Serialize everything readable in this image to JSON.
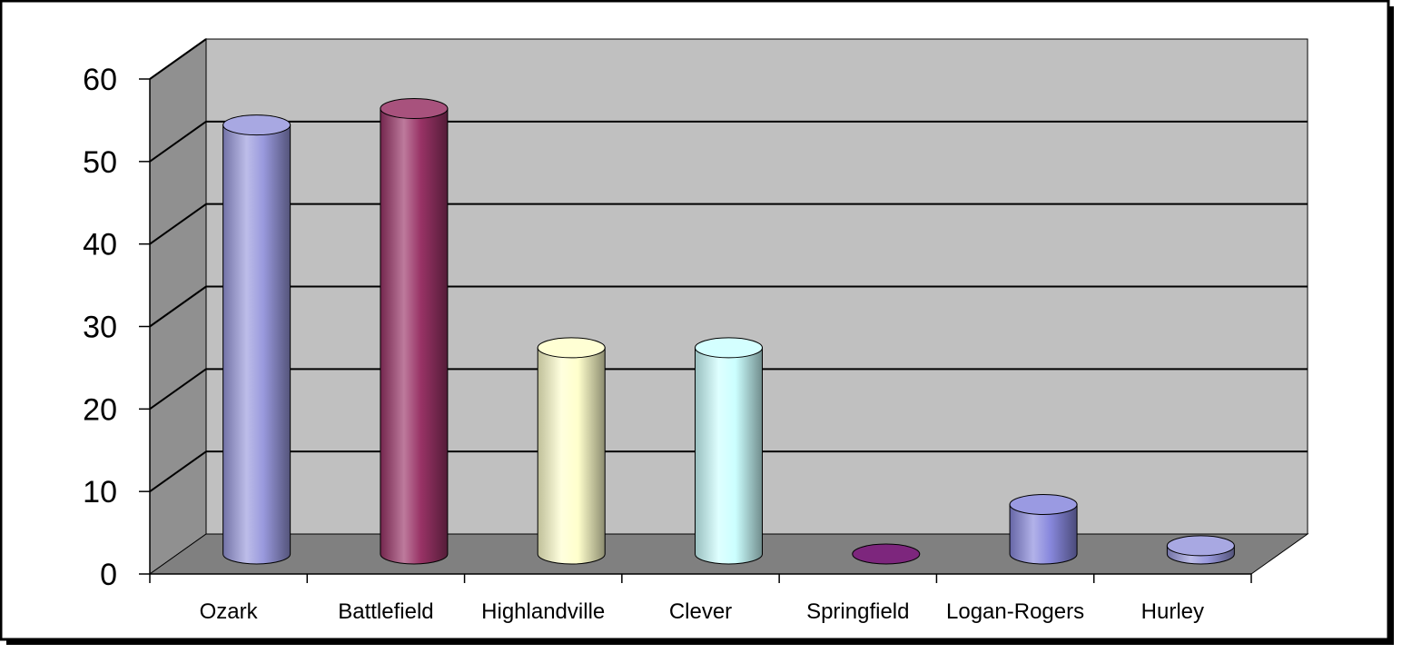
{
  "chart_data": {
    "type": "bar",
    "style": "3d-cylinder",
    "categories": [
      "Ozark",
      "Battlefield",
      "Highlandville",
      "Clever",
      "Springfield",
      "Logan-Rogers",
      "Hurley"
    ],
    "values": [
      52,
      54,
      25,
      25,
      0,
      6,
      1
    ],
    "colors": [
      "#9999dd",
      "#993366",
      "#ffffcc",
      "#ccffff",
      "#660066",
      "#8888dd",
      "#9999dd"
    ],
    "title": "",
    "xlabel": "",
    "ylabel": "",
    "ylim": [
      0,
      60
    ],
    "yticks": [
      0,
      10,
      20,
      30,
      40,
      50,
      60
    ],
    "grid": true,
    "legend": "none",
    "wall_color": "#c0c0c0",
    "floor_color": "#808080"
  }
}
